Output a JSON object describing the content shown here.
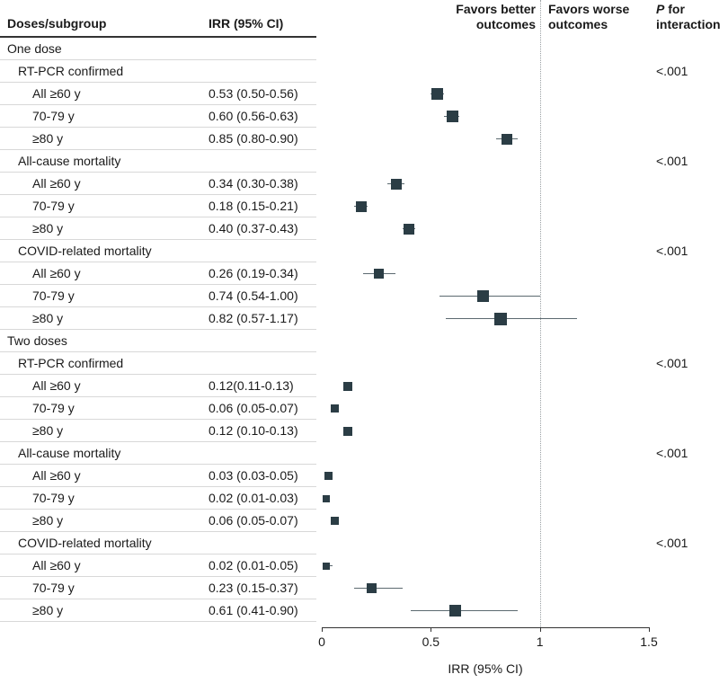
{
  "header": {
    "col_subgroup": "Doses/subgroup",
    "col_irr": "IRR (95% CI)",
    "favors_better": "Favors better outcomes",
    "favors_worse": "Favors worse outcomes",
    "p_top_italic": "P",
    "p_top_rest": " for",
    "p_bottom": "interaction"
  },
  "axis": {
    "min": 0,
    "max": 1.5,
    "ticks": [
      0,
      0.5,
      1,
      1.5
    ],
    "tick_labels": [
      "0",
      "0.5",
      "1",
      "1.5"
    ],
    "ref_line": 1,
    "title": "IRR (95% CI)"
  },
  "colors": {
    "marker": "#2b3d45",
    "ci": "#5c6a70",
    "rowline": "#d8d8d8",
    "headerline": "#333333",
    "refline": "#9aa0a3",
    "axis": "#333333",
    "text": "#1a1a1a"
  },
  "chart_data": {
    "type": "forest",
    "xlabel": "IRR (95% CI)",
    "xlim": [
      0,
      1.5
    ],
    "reference_line": 1,
    "rows": [
      {
        "type": "section",
        "label": "One dose"
      },
      {
        "type": "subsection",
        "label": "RT-PCR confirmed",
        "p": "<.001"
      },
      {
        "type": "item",
        "label": "All ≥60 y",
        "irr_text": "0.53 (0.50-0.56)",
        "est": 0.53,
        "lo": 0.5,
        "hi": 0.56,
        "size": 13
      },
      {
        "type": "item",
        "label": "70-79 y",
        "irr_text": "0.60 (0.56-0.63)",
        "est": 0.6,
        "lo": 0.56,
        "hi": 0.63,
        "size": 13
      },
      {
        "type": "item",
        "label": "≥80 y",
        "irr_text": "0.85 (0.80-0.90)",
        "est": 0.85,
        "lo": 0.8,
        "hi": 0.9,
        "size": 12
      },
      {
        "type": "subsection",
        "label": "All-cause mortality",
        "p": "<.001"
      },
      {
        "type": "item",
        "label": "All ≥60 y",
        "irr_text": "0.34 (0.30-0.38)",
        "est": 0.34,
        "lo": 0.3,
        "hi": 0.38,
        "size": 12
      },
      {
        "type": "item",
        "label": "70-79 y",
        "irr_text": "0.18 (0.15-0.21)",
        "est": 0.18,
        "lo": 0.15,
        "hi": 0.21,
        "size": 12
      },
      {
        "type": "item",
        "label": "≥80 y",
        "irr_text": "0.40 (0.37-0.43)",
        "est": 0.4,
        "lo": 0.37,
        "hi": 0.43,
        "size": 12
      },
      {
        "type": "subsection",
        "label": "COVID-related mortality",
        "p": "<.001"
      },
      {
        "type": "item",
        "label": "All ≥60 y",
        "irr_text": "0.26 (0.19-0.34)",
        "est": 0.26,
        "lo": 0.19,
        "hi": 0.34,
        "size": 11
      },
      {
        "type": "item",
        "label": "70-79 y",
        "irr_text": "0.74 (0.54-1.00)",
        "est": 0.74,
        "lo": 0.54,
        "hi": 1.0,
        "size": 13
      },
      {
        "type": "item",
        "label": "≥80 y",
        "irr_text": "0.82 (0.57-1.17)",
        "est": 0.82,
        "lo": 0.57,
        "hi": 1.17,
        "size": 14
      },
      {
        "type": "section",
        "label": "Two doses"
      },
      {
        "type": "subsection",
        "label": "RT-PCR confirmed",
        "p": "<.001"
      },
      {
        "type": "item",
        "label": "All ≥60 y",
        "irr_text": "0.12(0.11-0.13)",
        "est": 0.12,
        "lo": 0.11,
        "hi": 0.13,
        "size": 10
      },
      {
        "type": "item",
        "label": "70-79 y",
        "irr_text": "0.06 (0.05-0.07)",
        "est": 0.06,
        "lo": 0.05,
        "hi": 0.07,
        "size": 9
      },
      {
        "type": "item",
        "label": "≥80 y",
        "irr_text": "0.12 (0.10-0.13)",
        "est": 0.12,
        "lo": 0.1,
        "hi": 0.13,
        "size": 10
      },
      {
        "type": "subsection",
        "label": "All-cause mortality",
        "p": "<.001"
      },
      {
        "type": "item",
        "label": "All ≥60 y",
        "irr_text": "0.03 (0.03-0.05)",
        "est": 0.03,
        "lo": 0.03,
        "hi": 0.05,
        "size": 9
      },
      {
        "type": "item",
        "label": "70-79 y",
        "irr_text": "0.02 (0.01-0.03)",
        "est": 0.02,
        "lo": 0.01,
        "hi": 0.03,
        "size": 8
      },
      {
        "type": "item",
        "label": "≥80 y",
        "irr_text": "0.06 (0.05-0.07)",
        "est": 0.06,
        "lo": 0.05,
        "hi": 0.07,
        "size": 9
      },
      {
        "type": "subsection",
        "label": "COVID-related mortality",
        "p": "<.001"
      },
      {
        "type": "item",
        "label": "All ≥60 y",
        "irr_text": "0.02 (0.01-0.05)",
        "est": 0.02,
        "lo": 0.01,
        "hi": 0.05,
        "size": 8
      },
      {
        "type": "item",
        "label": "70-79 y",
        "irr_text": "0.23 (0.15-0.37)",
        "est": 0.23,
        "lo": 0.15,
        "hi": 0.37,
        "size": 11
      },
      {
        "type": "item",
        "label": "≥80 y",
        "irr_text": "0.61 (0.41-0.90)",
        "est": 0.61,
        "lo": 0.41,
        "hi": 0.9,
        "size": 13
      }
    ]
  }
}
